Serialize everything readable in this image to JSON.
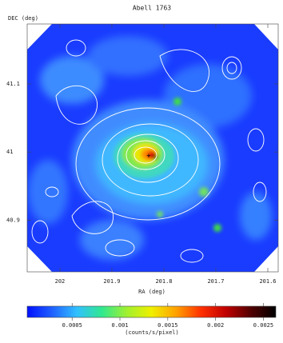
{
  "chart_data": {
    "type": "image",
    "title": "Abell 1763",
    "xlabel": "RA (deg)",
    "ylabel": "DEC (deg)",
    "xlim": [
      202.063,
      201.58
    ],
    "ylim": [
      40.824,
      41.188
    ],
    "xticks": [
      202,
      201.9,
      201.8,
      201.7,
      201.6
    ],
    "yticks": [
      41.1,
      41,
      40.9
    ],
    "colorbar": {
      "label": "(counts/s/pixel)",
      "lim": [
        3e-05,
        0.00263
      ],
      "ticks": [
        0.0005,
        0.001,
        0.0015,
        0.002,
        0.0025
      ],
      "colors": [
        "#0010ff",
        "#2060ff",
        "#30c0ff",
        "#30e890",
        "#a0f030",
        "#f0f000",
        "#ffa000",
        "#ff3000",
        "#c00000",
        "#500000",
        "#000000"
      ]
    }
  }
}
